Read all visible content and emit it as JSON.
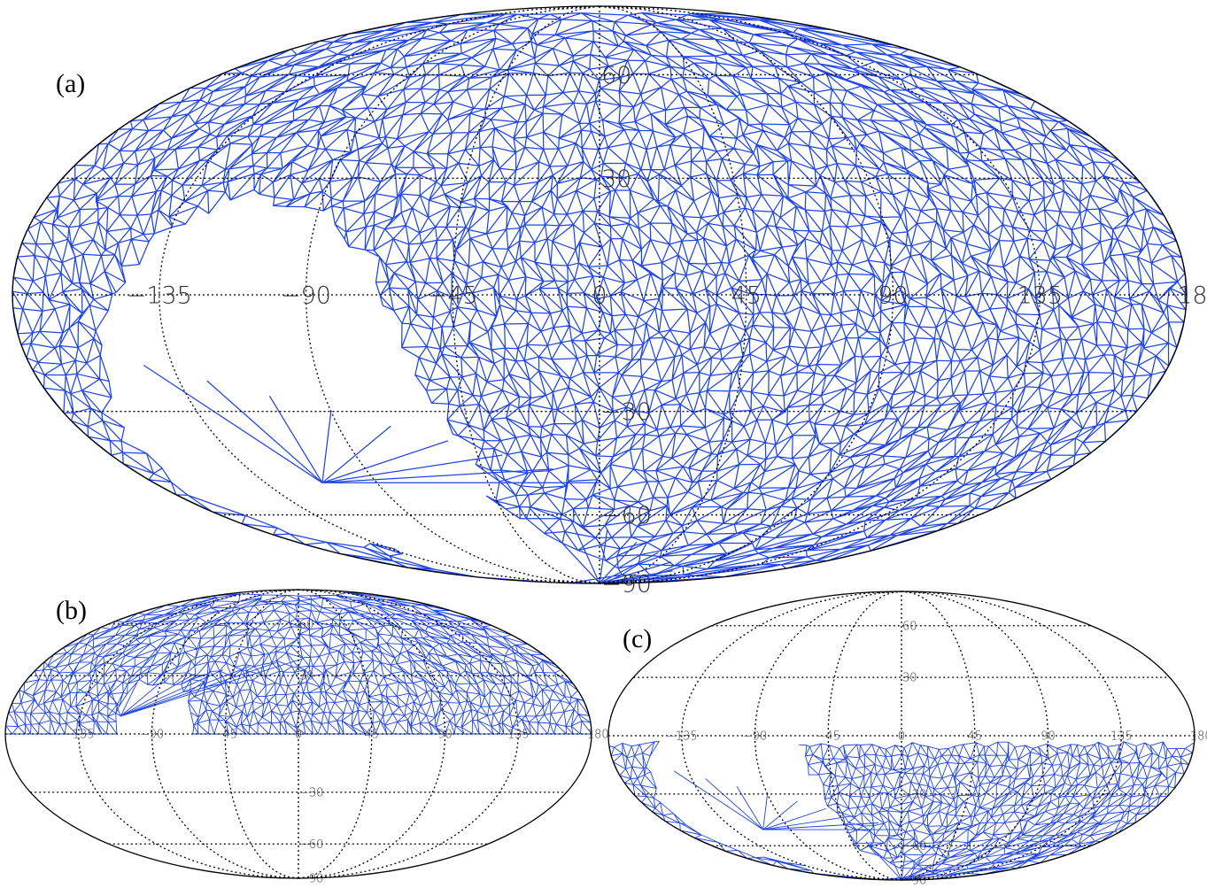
{
  "panels": [
    {
      "id": "a",
      "label": "(a)",
      "coverage": "full-sky",
      "lat_labels": [
        "60",
        "30",
        "-30",
        "-60",
        "-90"
      ],
      "lon_labels": [
        "-135",
        "-90",
        "-45",
        "0",
        "45",
        "90",
        "135",
        "180"
      ],
      "mesh_color": "#1f45e6"
    },
    {
      "id": "b",
      "label": "(b)",
      "coverage": "northern-hemisphere",
      "lat_labels": [
        "60",
        "30",
        "-30",
        "-60",
        "-90"
      ],
      "lon_labels": [
        "-135",
        "-90",
        "-45",
        "0",
        "45",
        "90",
        "135",
        "180"
      ],
      "mesh_color": "#1f45e6"
    },
    {
      "id": "c",
      "label": "(c)",
      "coverage": "southern-hemisphere",
      "lat_labels": [
        "60",
        "30",
        "-30",
        "-60",
        "-90"
      ],
      "lon_labels": [
        "-135",
        "-90",
        "-45",
        "0",
        "45",
        "90",
        "135",
        "180"
      ],
      "mesh_color": "#1f45e6"
    }
  ],
  "projection": "Mollweide",
  "gridline_style": "dotted",
  "gridline_color": "#000000",
  "background_color": "#ffffff"
}
